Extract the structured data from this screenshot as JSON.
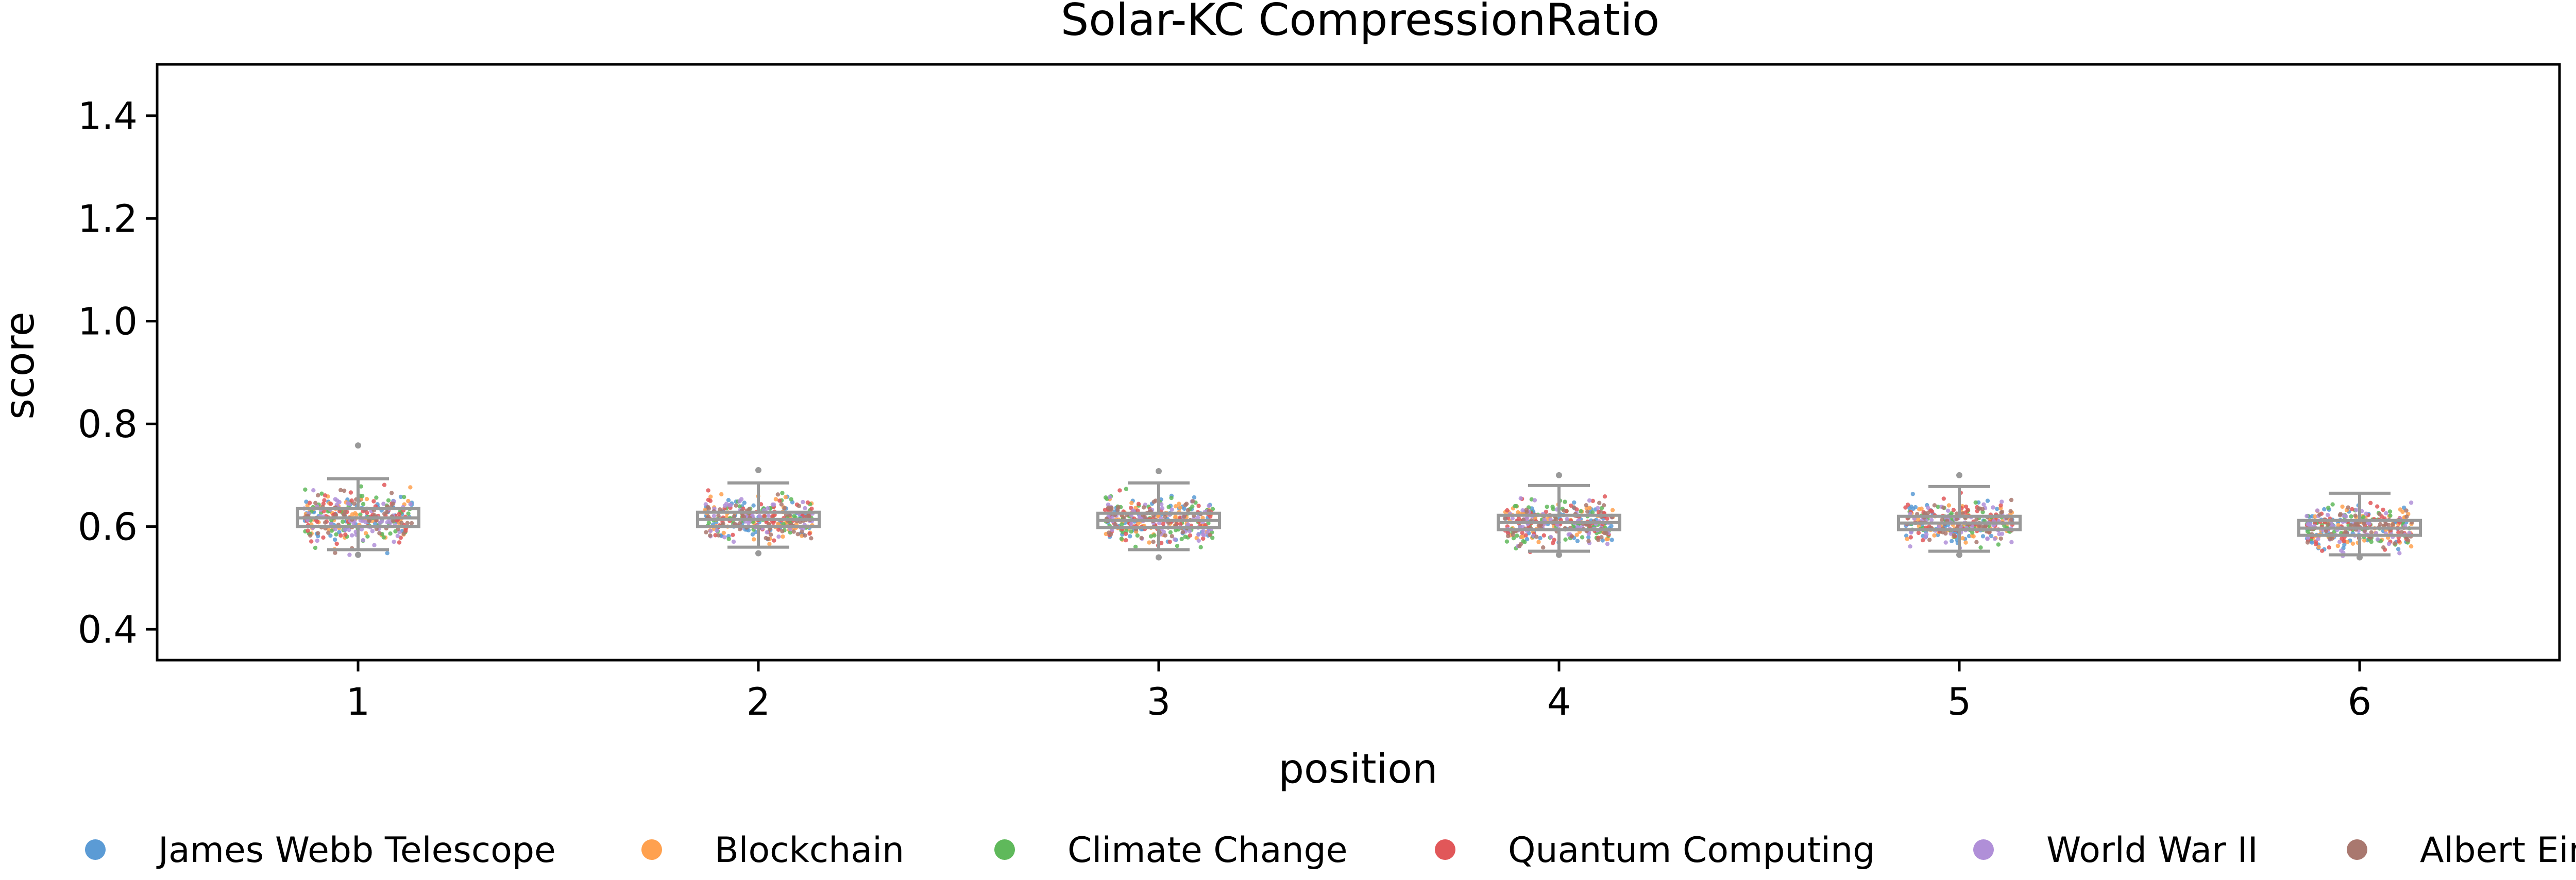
{
  "chart_data": {
    "type": "box",
    "title": "Solar-KC CompressionRatio",
    "xlabel": "position",
    "ylabel": "score",
    "categories": [
      "1",
      "2",
      "3",
      "4",
      "5",
      "6"
    ],
    "ylim": [
      0.34,
      1.5
    ],
    "yticks": [
      0.4,
      0.6,
      0.8,
      1.0,
      1.2,
      1.4
    ],
    "ytick_labels": [
      "0.4",
      "0.6",
      "0.8",
      "1.0",
      "1.2",
      "1.4"
    ],
    "grid": false,
    "legend_position": "bottom",
    "boxes": [
      {
        "position": "1",
        "whisker_low": 0.555,
        "q1": 0.6,
        "median": 0.617,
        "q3": 0.635,
        "whisker_high": 0.693,
        "outliers": [
          0.758,
          0.545
        ]
      },
      {
        "position": "2",
        "whisker_low": 0.56,
        "q1": 0.6,
        "median": 0.614,
        "q3": 0.628,
        "whisker_high": 0.685,
        "outliers": [
          0.71,
          0.548
        ]
      },
      {
        "position": "3",
        "whisker_low": 0.555,
        "q1": 0.598,
        "median": 0.612,
        "q3": 0.626,
        "whisker_high": 0.685,
        "outliers": [
          0.708,
          0.54
        ]
      },
      {
        "position": "4",
        "whisker_low": 0.552,
        "q1": 0.594,
        "median": 0.608,
        "q3": 0.622,
        "whisker_high": 0.68,
        "outliers": [
          0.7,
          0.545
        ]
      },
      {
        "position": "5",
        "whisker_low": 0.552,
        "q1": 0.594,
        "median": 0.607,
        "q3": 0.62,
        "whisker_high": 0.678,
        "outliers": [
          0.7,
          0.545
        ]
      },
      {
        "position": "6",
        "whisker_low": 0.545,
        "q1": 0.583,
        "median": 0.597,
        "q3": 0.612,
        "whisker_high": 0.665,
        "outliers": [
          0.54
        ]
      }
    ],
    "series": [
      {
        "name": "James Webb Telescope",
        "color": "#5b9bd5"
      },
      {
        "name": "Blockchain",
        "color": "#ffa14f"
      },
      {
        "name": "Climate Change",
        "color": "#5fb95b"
      },
      {
        "name": "Quantum Computing",
        "color": "#e15759"
      },
      {
        "name": "World War II",
        "color": "#b08fd8"
      },
      {
        "name": "Albert Einstein",
        "color": "#a9786f"
      }
    ],
    "box_color": "#999999"
  }
}
